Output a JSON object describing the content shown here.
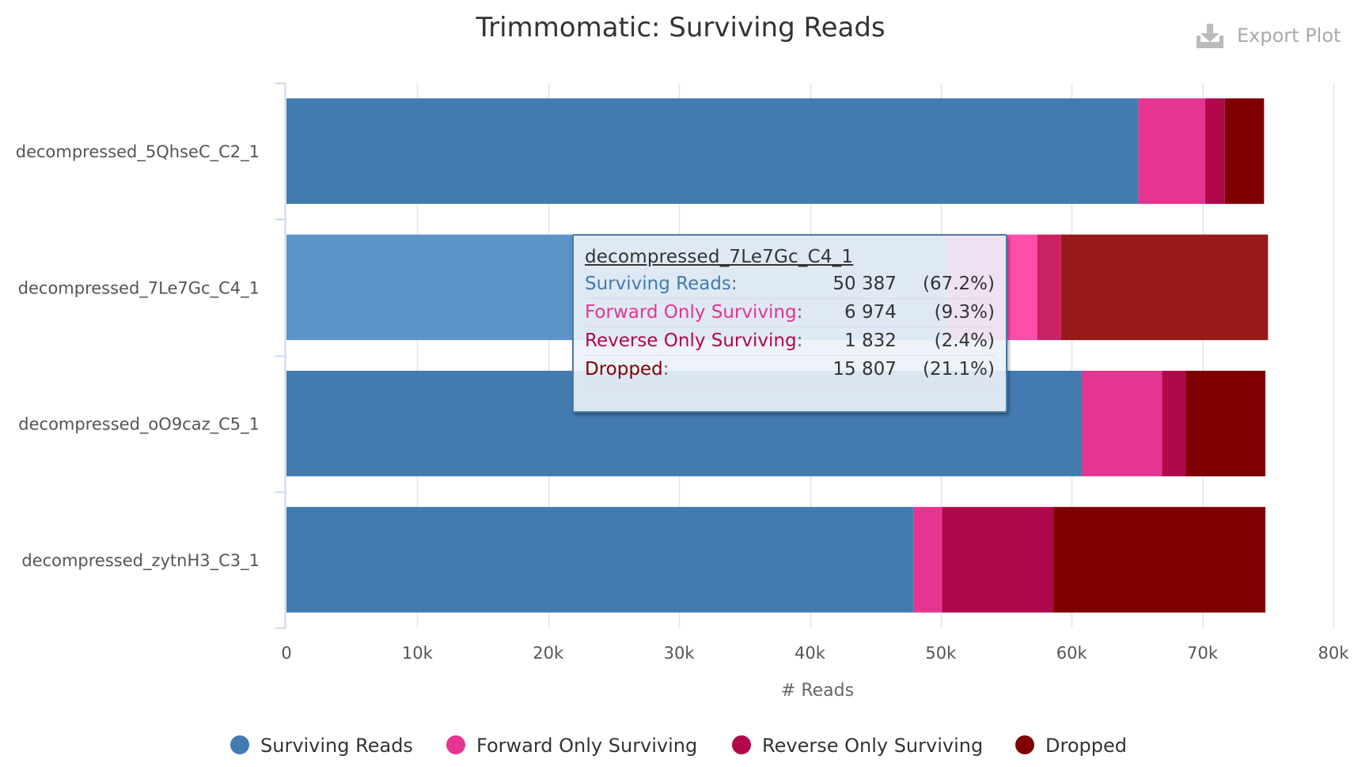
{
  "chart_data": {
    "type": "bar",
    "orientation": "horizontal",
    "stacked": true,
    "title": "Trimmomatic: Surviving Reads",
    "xlabel": "# Reads",
    "ylabel": "",
    "xlim": [
      0,
      80000
    ],
    "x_ticks": [
      0,
      10000,
      20000,
      30000,
      40000,
      50000,
      60000,
      70000,
      80000
    ],
    "x_tick_labels": [
      "0",
      "10k",
      "20k",
      "30k",
      "40k",
      "50k",
      "60k",
      "70k",
      "80k"
    ],
    "grid": true,
    "legend_position": "bottom",
    "categories": [
      "decompressed_5QhseC_C2_1",
      "decompressed_7Le7Gc_C4_1",
      "decompressed_oO9caz_C5_1",
      "decompressed_zytnH3_C3_1"
    ],
    "highlighted_category_index": 1,
    "series": [
      {
        "name": "Surviving Reads",
        "color": "#437bb1",
        "highlight_color": "#5c94ca",
        "values": [
          65100,
          50387,
          60800,
          47900
        ]
      },
      {
        "name": "Forward Only Surviving",
        "color": "#e63491",
        "highlight_color": "#ff4daa",
        "values": [
          5100,
          6974,
          6100,
          2200
        ]
      },
      {
        "name": "Reverse Only Surviving",
        "color": "#b1084c",
        "highlight_color": "#ca2165",
        "values": [
          1500,
          1832,
          1800,
          8500
        ]
      },
      {
        "name": "Dropped",
        "color": "#7f0000",
        "highlight_color": "#981919",
        "values": [
          3000,
          15807,
          6100,
          16200
        ]
      }
    ]
  },
  "tooltip": {
    "title": "decompressed_7Le7Gc_C4_1",
    "rows": [
      {
        "name": "Surviving Reads",
        "value": "50 387",
        "pct": "(67.2%)",
        "color": "#437bb1"
      },
      {
        "name": "Forward Only Surviving",
        "value": "6 974",
        "pct": "(9.3%)",
        "color": "#e63491"
      },
      {
        "name": "Reverse Only Surviving",
        "value": "1 832",
        "pct": "(2.4%)",
        "color": "#b1084c"
      },
      {
        "name": "Dropped",
        "value": "15 807",
        "pct": "(21.1%)",
        "color": "#7f0000"
      }
    ]
  },
  "export": {
    "label": "Export Plot",
    "icon": "download-icon"
  }
}
